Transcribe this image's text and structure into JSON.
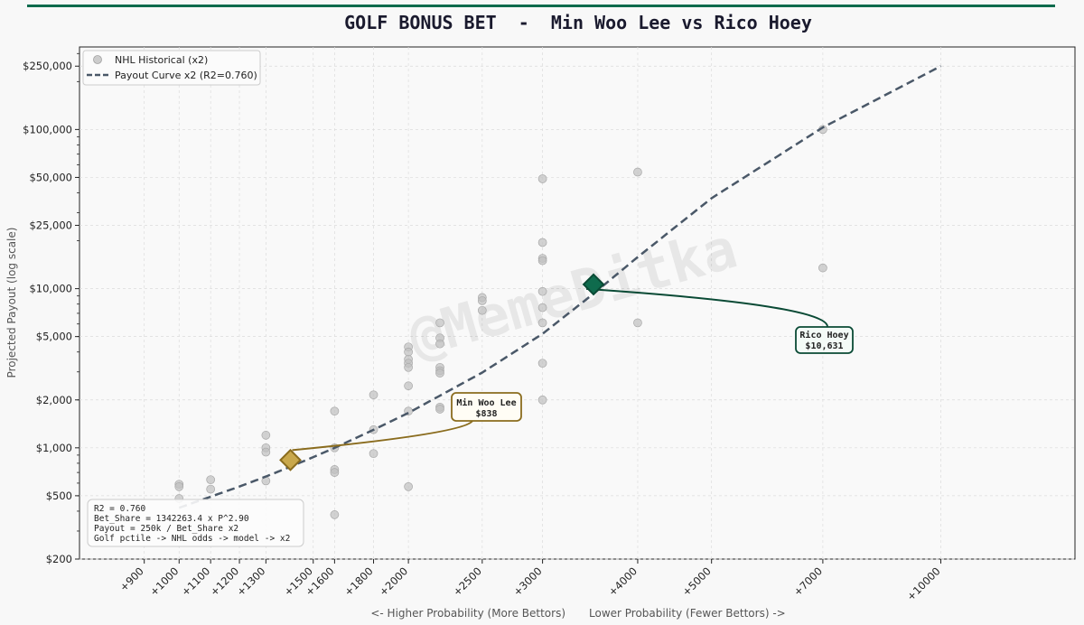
{
  "chart_data": {
    "type": "scatter",
    "title": "GOLF BONUS BET  -  Min Woo Lee vs Rico Hoey",
    "ylabel": "Projected Payout  (log scale)",
    "xlabel_left": "<- Higher Probability (More Bettors)",
    "xlabel_right": "Lower Probability (Fewer Bettors) ->",
    "watermark": "@MemeDitka",
    "y_scale": "log",
    "ylim": [
      200,
      330000
    ],
    "xlim": [
      740,
      15000
    ],
    "x_scale": "odds_log",
    "yticks": [
      {
        "value": 200,
        "label": "$200"
      },
      {
        "value": 500,
        "label": "$500"
      },
      {
        "value": 1000,
        "label": "$1,000"
      },
      {
        "value": 2000,
        "label": "$2,000"
      },
      {
        "value": 5000,
        "label": "$5,000"
      },
      {
        "value": 10000,
        "label": "$10,000"
      },
      {
        "value": 25000,
        "label": "$25,000"
      },
      {
        "value": 50000,
        "label": "$50,000"
      },
      {
        "value": 100000,
        "label": "$100,000"
      },
      {
        "value": 250000,
        "label": "$250,000"
      }
    ],
    "xticks": [
      {
        "value": 900,
        "label": "+900"
      },
      {
        "value": 1000,
        "label": "+1000"
      },
      {
        "value": 1100,
        "label": "+1100"
      },
      {
        "value": 1200,
        "label": "+1200"
      },
      {
        "value": 1300,
        "label": "+1300"
      },
      {
        "value": 1500,
        "label": "+1500"
      },
      {
        "value": 1600,
        "label": "+1600"
      },
      {
        "value": 1800,
        "label": "+1800"
      },
      {
        "value": 2000,
        "label": "+2000"
      },
      {
        "value": 2500,
        "label": "+2500"
      },
      {
        "value": 3000,
        "label": "+3000"
      },
      {
        "value": 4000,
        "label": "+4000"
      },
      {
        "value": 5000,
        "label": "+5000"
      },
      {
        "value": 7000,
        "label": "+7000"
      },
      {
        "value": 10000,
        "label": "+10000"
      }
    ],
    "legend": [
      {
        "label": "NHL Historical (x2)",
        "kind": "point",
        "color": "#c0c0c0"
      },
      {
        "label": "Payout Curve x2 (R2=0.760)",
        "kind": "dashed-line",
        "color": "#4a5868"
      }
    ],
    "legend_position": "top-left",
    "series": [
      {
        "name": "NHL Historical (x2)",
        "type": "scatter",
        "color": "#c0c0c0",
        "points": [
          [
            1000,
            590
          ],
          [
            1000,
            570
          ],
          [
            1000,
            480
          ],
          [
            1100,
            630
          ],
          [
            1100,
            550
          ],
          [
            1300,
            1200
          ],
          [
            1300,
            1000
          ],
          [
            1300,
            940
          ],
          [
            1300,
            620
          ],
          [
            1600,
            1700
          ],
          [
            1600,
            1000
          ],
          [
            1600,
            730
          ],
          [
            1600,
            700
          ],
          [
            1600,
            380
          ],
          [
            1800,
            2150
          ],
          [
            1800,
            1300
          ],
          [
            1800,
            920
          ],
          [
            2000,
            4300
          ],
          [
            2000,
            4000
          ],
          [
            2000,
            3600
          ],
          [
            2000,
            3400
          ],
          [
            2000,
            3200
          ],
          [
            2000,
            2450
          ],
          [
            2000,
            1700
          ],
          [
            2000,
            570
          ],
          [
            2200,
            6100
          ],
          [
            2200,
            4900
          ],
          [
            2200,
            4500
          ],
          [
            2200,
            3200
          ],
          [
            2200,
            3050
          ],
          [
            2200,
            2950
          ],
          [
            2200,
            1800
          ],
          [
            2200,
            1750
          ],
          [
            2500,
            8800
          ],
          [
            2500,
            8400
          ],
          [
            2500,
            7300
          ],
          [
            2500,
            1650
          ],
          [
            3000,
            49000
          ],
          [
            3000,
            19500
          ],
          [
            3000,
            15500
          ],
          [
            3000,
            15000
          ],
          [
            3000,
            9600
          ],
          [
            3000,
            7600
          ],
          [
            3000,
            6100
          ],
          [
            3000,
            3400
          ],
          [
            3000,
            2000
          ],
          [
            4000,
            54000
          ],
          [
            4000,
            6100
          ],
          [
            7000,
            100000
          ],
          [
            7000,
            13500
          ]
        ]
      },
      {
        "name": "Payout Curve x2 (R2=0.760)",
        "type": "line",
        "style": "dashed",
        "color": "#4a5868",
        "points": [
          [
            1000,
            420
          ],
          [
            1100,
            493
          ],
          [
            1200,
            571
          ],
          [
            1300,
            660
          ],
          [
            1400,
            761
          ],
          [
            1500,
            874
          ],
          [
            1600,
            999
          ],
          [
            1800,
            1298
          ],
          [
            2000,
            1658
          ],
          [
            2500,
            2970
          ],
          [
            3000,
            5200
          ],
          [
            3500,
            9300
          ],
          [
            4000,
            15800
          ],
          [
            5000,
            37000
          ],
          [
            7000,
            103000
          ],
          [
            10000,
            250000
          ]
        ]
      }
    ],
    "highlights": [
      {
        "name": "Min Woo Lee",
        "odds": 1400,
        "value": 838,
        "label": "$838",
        "color": "#c9a84c",
        "edge": "#8a6c1e"
      },
      {
        "name": "Rico Hoey",
        "odds": 3500,
        "value": 10631,
        "label": "$10,631",
        "color": "#0f6b4d",
        "edge": "#0a4a35"
      }
    ],
    "stats_box": {
      "lines": [
        "R2 = 0.760",
        "Bet_Share = 1342263.4 x P^2.90",
        "Payout = 250k / Bet_Share x2",
        "Golf pctile -> NHL odds -> model -> x2"
      ],
      "position": "bottom-left"
    },
    "grid": true
  },
  "colors": {
    "accent": "#0f6b4d",
    "gold": "#c9a84c",
    "curve": "#4a5868",
    "historical": "#c0c0c0",
    "plot_bg": "#f9f9f9"
  }
}
